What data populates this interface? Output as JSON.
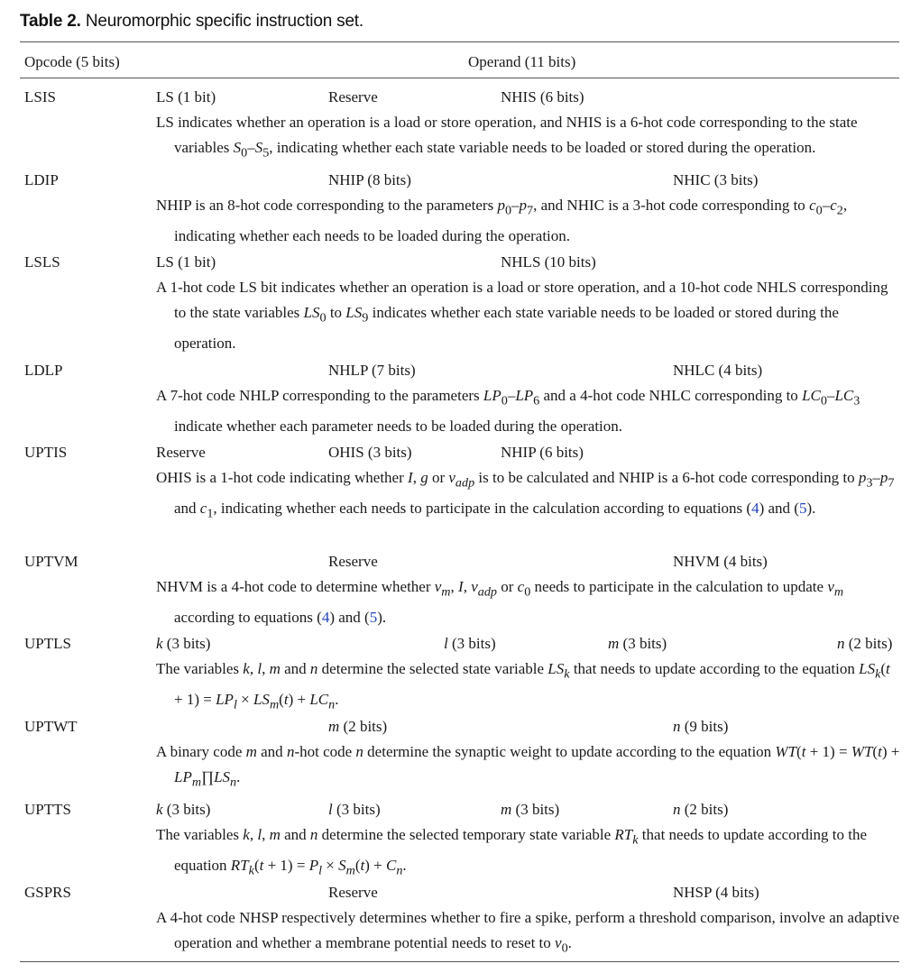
{
  "caption": {
    "label": "Table 2.",
    "text": " Neuromorphic specific instruction set."
  },
  "header": {
    "opcode": "Opcode (5 bits)",
    "operand": "Operand (11 bits)"
  },
  "rows": [
    {
      "opcode": "LSIS",
      "fields": [
        "LS (1 bit)",
        "Reserve",
        "NHIS (6 bits)"
      ],
      "desc_html": "LS indicates whether an operation is a load or store operation, and NHIS is a 6-hot code corresponding to the state variables <i>S</i><sub>0</sub>–<i>S</i><sub>5</sub>, indicating whether each state variable needs to be loaded or stored during the operation."
    },
    {
      "opcode": "LDIP",
      "fields": [
        "NHIP (8 bits)",
        "NHIC (3 bits)"
      ],
      "desc_html": "NHIP is an 8-hot code corresponding to the parameters <i>p</i><sub>0</sub>–<i>p</i><sub>7</sub>, and NHIC is a 3-hot code corresponding to <i>c</i><sub>0</sub>–<i>c</i><sub>2</sub>, indicating whether each needs to be loaded during the operation."
    },
    {
      "opcode": "LSLS",
      "fields": [
        "LS (1 bit)",
        "NHLS (10 bits)"
      ],
      "desc_html": "A 1-hot code LS bit indicates whether an operation is a load or store operation, and a 10-hot code NHLS corresponding to the state variables <i>LS</i><sub>0</sub> to <i>LS</i><sub>9</sub> indicates whether each state variable needs to be loaded or stored during the operation."
    },
    {
      "opcode": "LDLP",
      "fields": [
        "NHLP (7 bits)",
        "NHLC (4 bits)"
      ],
      "desc_html": "A 7-hot code NHLP corresponding to the parameters <i>LP</i><sub>0</sub>–<i>LP</i><sub>6</sub> and a 4-hot code NHLC corresponding to <i>LC</i><sub>0</sub>–<i>LC</i><sub>3</sub> indicate whether each parameter needs to be loaded during the operation."
    },
    {
      "opcode": "UPTIS",
      "fields": [
        "Reserve",
        "OHIS (3 bits)",
        "NHIP (6 bits)"
      ],
      "desc_html": "OHIS is a 1-hot code indicating whether <i>I</i>, <i>g</i> or <i>v<sub>adp</sub></i> is to be calculated and NHIP is a 6-hot code corresponding to <i>p</i><sub>3</sub>–<i>p</i><sub>7</sub> and <i>c</i><sub>1</sub>, indicating whether each needs to participate in the calculation according to equations (<span class=\"ref\">4</span>) and (<span class=\"ref\">5</span>)."
    },
    {
      "opcode": "UPTVM",
      "fields": [
        "Reserve",
        "NHVM (4 bits)"
      ],
      "desc_html": "NHVM is a 4-hot code to determine whether <i>v<sub>m</sub></i>, <i>I</i>, <i>v<sub>adp</sub></i> or <i>c</i><sub>0</sub> needs to participate in the calculation to update <i>v<sub>m</sub></i> according to equations (<span class=\"ref\">4</span>) and (<span class=\"ref\">5</span>)."
    },
    {
      "opcode": "UPTLS",
      "fields": [
        "k (3 bits)",
        "l (3 bits)",
        "m (3 bits)",
        "n (2 bits)"
      ],
      "desc_html": "The variables <i>k</i>, <i>l</i>, <i>m</i> and <i>n</i> determine the selected state variable <i>LS<sub>k</sub></i> that needs to update according to the equation <i>LS<sub>k</sub></i>(<i>t</i> + 1) = <i>LP<sub>l</sub></i> × <i>LS<sub>m</sub></i>(<i>t</i>) + <i>LC<sub>n</sub></i>."
    },
    {
      "opcode": "UPTWT",
      "fields": [
        "m (2 bits)",
        "n (9 bits)"
      ],
      "desc_html": "A binary code <i>m</i> and <i>n</i>-hot code <i>n</i> determine the synaptic weight to update according to the equation <i>WT</i>(<i>t</i> + 1) = <i>WT</i>(<i>t</i>) + <i>LP<sub>m</sub></i>∏<i>LS<sub>n</sub></i>."
    },
    {
      "opcode": "UPTTS",
      "fields": [
        "k (3 bits)",
        "l (3 bits)",
        "m (3 bits)",
        "n (2 bits)"
      ],
      "desc_html": "The variables <i>k</i>, <i>l</i>, <i>m</i> and <i>n</i> determine the selected temporary state variable <i>RT<sub>k</sub></i> that needs to update according to the equation <i>RT<sub>k</sub></i>(<i>t</i> + 1) = <i>P<sub>l</sub></i> × <i>S<sub>m</sub></i>(<i>t</i>) + <i>C<sub>n</sub></i>."
    },
    {
      "opcode": "GSPRS",
      "fields": [
        "Reserve",
        "NHSP (4 bits)"
      ],
      "desc_html": "A 4-hot code NHSP respectively determines whether to fire a spike, perform a threshold comparison, involve an adaptive operation and whether a membrane potential needs to reset to <i>v</i><sub>0</sub>."
    }
  ]
}
